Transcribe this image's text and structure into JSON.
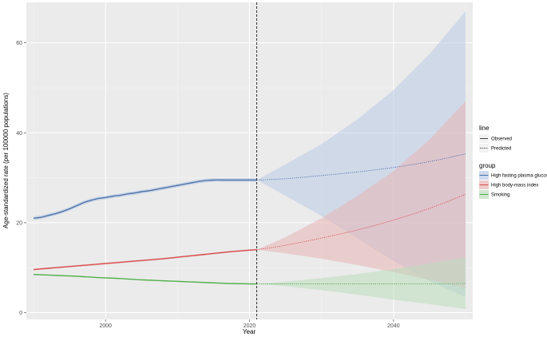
{
  "chart_data": {
    "type": "line",
    "title": "",
    "xlabel": "Year",
    "ylabel": "Age-standardized rate (per 100000 populations)",
    "xlim": [
      1989,
      2051
    ],
    "ylim": [
      -1.5,
      69
    ],
    "x_ticks": [
      2000,
      2020,
      2040
    ],
    "y_ticks": [
      0,
      20,
      40,
      60
    ],
    "grid": true,
    "panel_background": "#ebebeb",
    "vline": {
      "x": 2021,
      "style": "dashed"
    },
    "legend": {
      "placement": "right",
      "line": {
        "title": "line",
        "entries": [
          {
            "label": "Observed",
            "style": "solid"
          },
          {
            "label": "Predicted",
            "style": "dotted"
          }
        ]
      },
      "group": {
        "title": "group",
        "entries": [
          {
            "label": "High fasting plasma glucose",
            "color": "#4a6fa5"
          },
          {
            "label": "High body-mass index",
            "color": "#d94b4b"
          },
          {
            "label": "Smoking",
            "color": "#4faf4a"
          }
        ]
      }
    },
    "series": [
      {
        "name": "High fasting plasma glucose",
        "color": "#4a6fa5",
        "fill": "#b9cbe5",
        "observed": {
          "x": [
            1990,
            1991,
            1992,
            1993,
            1994,
            1995,
            1996,
            1997,
            1998,
            1999,
            2000,
            2001,
            2002,
            2003,
            2004,
            2005,
            2006,
            2007,
            2008,
            2009,
            2010,
            2011,
            2012,
            2013,
            2014,
            2015,
            2016,
            2017,
            2018,
            2019,
            2020,
            2021
          ],
          "y": [
            21.0,
            21.2,
            21.6,
            22.0,
            22.5,
            23.1,
            23.8,
            24.5,
            25.0,
            25.4,
            25.6,
            25.9,
            26.1,
            26.4,
            26.6,
            26.9,
            27.1,
            27.4,
            27.7,
            28.0,
            28.3,
            28.6,
            28.9,
            29.2,
            29.4,
            29.5,
            29.5,
            29.5,
            29.5,
            29.5,
            29.5,
            29.5
          ],
          "band": 0.4
        },
        "predicted": {
          "x": [
            2021,
            2025,
            2030,
            2035,
            2040,
            2045,
            2050
          ],
          "y": [
            29.5,
            29.8,
            30.5,
            31.3,
            32.3,
            33.6,
            35.3
          ],
          "lower": [
            29.5,
            26.0,
            21.5,
            16.5,
            11.5,
            7.0,
            3.5
          ],
          "upper": [
            29.5,
            33.0,
            37.5,
            43.0,
            49.5,
            57.5,
            67.0
          ]
        }
      },
      {
        "name": "High body-mass index",
        "color": "#d94b4b",
        "fill": "#e8b4b4",
        "observed": {
          "x": [
            1990,
            1993,
            1996,
            1999,
            2002,
            2005,
            2008,
            2011,
            2014,
            2017,
            2020,
            2021
          ],
          "y": [
            9.6,
            10.0,
            10.4,
            10.8,
            11.2,
            11.6,
            12.0,
            12.5,
            13.0,
            13.5,
            13.9,
            14.0
          ],
          "band": 0.2
        },
        "predicted": {
          "x": [
            2021,
            2025,
            2030,
            2035,
            2040,
            2045,
            2050
          ],
          "y": [
            14.0,
            15.0,
            16.6,
            18.4,
            20.6,
            23.2,
            26.3
          ],
          "lower": [
            14.0,
            13.2,
            12.0,
            10.6,
            9.0,
            7.3,
            5.5
          ],
          "upper": [
            14.0,
            16.8,
            21.0,
            26.0,
            31.5,
            38.5,
            47.0
          ]
        }
      },
      {
        "name": "Smoking",
        "color": "#4faf4a",
        "fill": "#bcdcbc",
        "observed": {
          "x": [
            1990,
            1993,
            1996,
            1999,
            2002,
            2005,
            2008,
            2011,
            2014,
            2017,
            2020,
            2021
          ],
          "y": [
            8.5,
            8.3,
            8.1,
            7.8,
            7.6,
            7.3,
            7.1,
            6.9,
            6.7,
            6.5,
            6.4,
            6.4
          ],
          "band": 0.15
        },
        "predicted": {
          "x": [
            2021,
            2025,
            2030,
            2035,
            2040,
            2045,
            2050
          ],
          "y": [
            6.4,
            6.4,
            6.4,
            6.4,
            6.4,
            6.4,
            6.5
          ],
          "lower": [
            6.4,
            5.9,
            5.0,
            4.0,
            2.9,
            1.9,
            0.8
          ],
          "upper": [
            6.4,
            6.9,
            7.7,
            8.6,
            9.7,
            10.9,
            12.3
          ]
        }
      }
    ]
  }
}
